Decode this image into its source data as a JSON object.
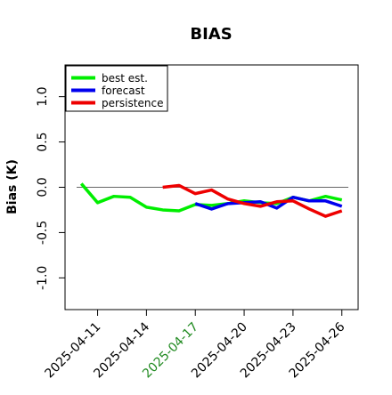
{
  "chart_data": {
    "type": "line",
    "title": "BIAS",
    "xlabel": "",
    "ylabel": "Bias (K)",
    "x_range": [
      "2025-04-09",
      "2025-04-27"
    ],
    "ylim": [
      -1.35,
      1.35
    ],
    "x_ticks": [
      {
        "date": "2025-04-11",
        "label": "2025-04-11",
        "color": "#000000"
      },
      {
        "date": "2025-04-14",
        "label": "2025-04-14",
        "color": "#000000"
      },
      {
        "date": "2025-04-17",
        "label": "2025-04-17",
        "color": "#228b22"
      },
      {
        "date": "2025-04-20",
        "label": "2025-04-20",
        "color": "#000000"
      },
      {
        "date": "2025-04-23",
        "label": "2025-04-23",
        "color": "#000000"
      },
      {
        "date": "2025-04-26",
        "label": "2025-04-26",
        "color": "#000000"
      }
    ],
    "y_ticks": [
      {
        "value": -1.0,
        "label": "-1.0"
      },
      {
        "value": -0.5,
        "label": "-0.5"
      },
      {
        "value": 0.0,
        "label": "0.0"
      },
      {
        "value": 0.5,
        "label": "0.5"
      },
      {
        "value": 1.0,
        "label": "1.0"
      }
    ],
    "reference_line": 0,
    "grid": false,
    "legend_position": "top-left",
    "series": [
      {
        "name": "best est.",
        "color": "#00ee00",
        "points": [
          {
            "x": "2025-04-10",
            "y": 0.04
          },
          {
            "x": "2025-04-11",
            "y": -0.17
          },
          {
            "x": "2025-04-12",
            "y": -0.1
          },
          {
            "x": "2025-04-13",
            "y": -0.11
          },
          {
            "x": "2025-04-14",
            "y": -0.22
          },
          {
            "x": "2025-04-15",
            "y": -0.25
          },
          {
            "x": "2025-04-16",
            "y": -0.26
          },
          {
            "x": "2025-04-17",
            "y": -0.19
          },
          {
            "x": "2025-04-18",
            "y": -0.2
          },
          {
            "x": "2025-04-19",
            "y": -0.18
          },
          {
            "x": "2025-04-20",
            "y": -0.15
          },
          {
            "x": "2025-04-21",
            "y": -0.17
          },
          {
            "x": "2025-04-22",
            "y": -0.18
          },
          {
            "x": "2025-04-23",
            "y": -0.11
          },
          {
            "x": "2025-04-24",
            "y": -0.15
          },
          {
            "x": "2025-04-25",
            "y": -0.1
          },
          {
            "x": "2025-04-26",
            "y": -0.14
          }
        ]
      },
      {
        "name": "forecast",
        "color": "#0000ee",
        "points": [
          {
            "x": "2025-04-17",
            "y": -0.18
          },
          {
            "x": "2025-04-18",
            "y": -0.24
          },
          {
            "x": "2025-04-19",
            "y": -0.18
          },
          {
            "x": "2025-04-20",
            "y": -0.17
          },
          {
            "x": "2025-04-21",
            "y": -0.16
          },
          {
            "x": "2025-04-22",
            "y": -0.23
          },
          {
            "x": "2025-04-23",
            "y": -0.11
          },
          {
            "x": "2025-04-24",
            "y": -0.15
          },
          {
            "x": "2025-04-25",
            "y": -0.15
          },
          {
            "x": "2025-04-26",
            "y": -0.21
          }
        ]
      },
      {
        "name": "persistence",
        "color": "#ee0000",
        "points": [
          {
            "x": "2025-04-15",
            "y": 0.0
          },
          {
            "x": "2025-04-16",
            "y": 0.02
          },
          {
            "x": "2025-04-17",
            "y": -0.07
          },
          {
            "x": "2025-04-18",
            "y": -0.03
          },
          {
            "x": "2025-04-19",
            "y": -0.13
          },
          {
            "x": "2025-04-20",
            "y": -0.18
          },
          {
            "x": "2025-04-21",
            "y": -0.21
          },
          {
            "x": "2025-04-22",
            "y": -0.16
          },
          {
            "x": "2025-04-23",
            "y": -0.15
          },
          {
            "x": "2025-04-24",
            "y": -0.24
          },
          {
            "x": "2025-04-25",
            "y": -0.32
          },
          {
            "x": "2025-04-26",
            "y": -0.26
          }
        ]
      }
    ]
  }
}
